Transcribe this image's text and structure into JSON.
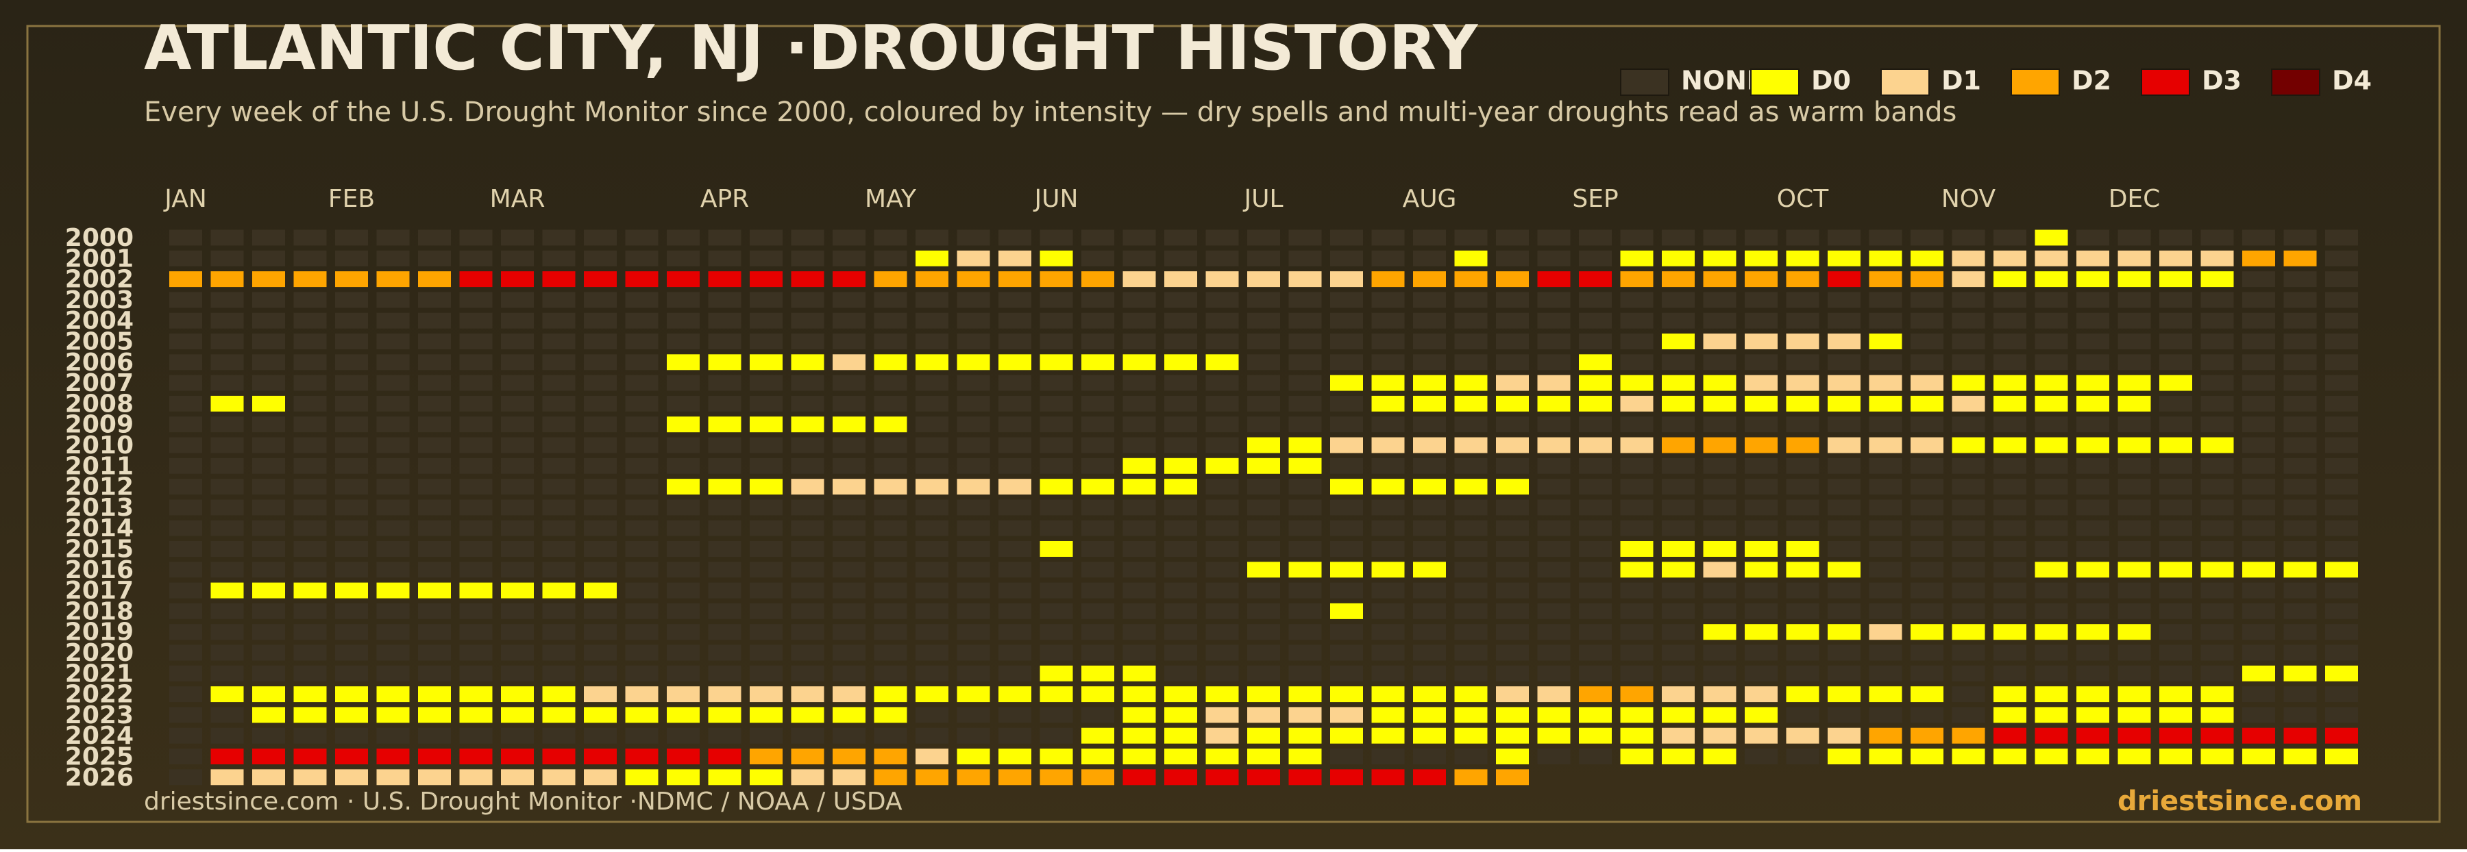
{
  "chart_data": {
    "type": "heatmap",
    "title": "ATLANTIC CITY, NJ ·DROUGHT HISTORY",
    "subtitle": "Every week of the U.S. Drought Monitor since 2000, coloured by intensity — dry spells and multi-year droughts read as warm bands",
    "footer": "driestsince.com  · U.S. Drought Monitor ·NDMC / NOAA / USDA",
    "brand": "driestsince.com",
    "levels": [
      {
        "name": "NONE",
        "color": "#3b3222"
      },
      {
        "name": "D0",
        "color": "#ffff00"
      },
      {
        "name": "D1",
        "color": "#fcd38f"
      },
      {
        "name": "D2",
        "color": "#ffa500"
      },
      {
        "name": "D3",
        "color": "#e60000"
      },
      {
        "name": "D4",
        "color": "#730000"
      }
    ],
    "xlim": [
      0,
      52
    ],
    "xticks": [
      {
        "value": 0,
        "label": "JAN"
      },
      {
        "value": 4,
        "label": "FEB"
      },
      {
        "value": 8,
        "label": "MAR"
      },
      {
        "value": 13,
        "label": "APR"
      },
      {
        "value": 17,
        "label": "MAY"
      },
      {
        "value": 21,
        "label": "JUN"
      },
      {
        "value": 26,
        "label": "JUL"
      },
      {
        "value": 30,
        "label": "AUG"
      },
      {
        "value": 34,
        "label": "SEP"
      },
      {
        "value": 39,
        "label": "OCT"
      },
      {
        "value": 43,
        "label": "NOV"
      },
      {
        "value": 47,
        "label": "DEC"
      }
    ],
    "rows": [
      "2000",
      "2001",
      "2002",
      "2003",
      "2004",
      "2005",
      "2006",
      "2007",
      "2008",
      "2009",
      "2010",
      "2011",
      "2012",
      "2013",
      "2014",
      "2015",
      "2016",
      "2017",
      "2018",
      "2019",
      "2020",
      "2021",
      "2022",
      "2023",
      "2024",
      "2025",
      "2026"
    ],
    "values": [
      [
        0,
        0,
        0,
        0,
        0,
        0,
        0,
        0,
        0,
        0,
        0,
        0,
        0,
        0,
        0,
        0,
        0,
        0,
        0,
        0,
        0,
        0,
        0,
        0,
        0,
        0,
        0,
        0,
        0,
        0,
        0,
        0,
        0,
        0,
        0,
        0,
        0,
        0,
        0,
        0,
        0,
        0,
        0,
        0,
        0,
        1,
        0,
        0,
        0,
        0,
        0,
        0,
        0
      ],
      [
        0,
        0,
        0,
        0,
        0,
        0,
        0,
        0,
        0,
        0,
        0,
        0,
        0,
        0,
        0,
        0,
        0,
        0,
        1,
        2,
        2,
        1,
        0,
        0,
        0,
        0,
        0,
        0,
        0,
        0,
        0,
        1,
        0,
        0,
        0,
        1,
        1,
        1,
        1,
        1,
        1,
        1,
        1,
        2,
        2,
        2,
        2,
        2,
        2,
        2,
        3,
        3,
        0
      ],
      [
        3,
        3,
        3,
        3,
        3,
        3,
        3,
        4,
        4,
        4,
        4,
        4,
        4,
        4,
        4,
        4,
        4,
        3,
        3,
        3,
        3,
        3,
        3,
        2,
        2,
        2,
        2,
        2,
        2,
        3,
        3,
        3,
        3,
        4,
        4,
        3,
        3,
        3,
        3,
        3,
        4,
        3,
        3,
        2,
        1,
        1,
        1,
        1,
        1,
        1,
        0,
        0,
        0
      ],
      [
        0,
        0,
        0,
        0,
        0,
        0,
        0,
        0,
        0,
        0,
        0,
        0,
        0,
        0,
        0,
        0,
        0,
        0,
        0,
        0,
        0,
        0,
        0,
        0,
        0,
        0,
        0,
        0,
        0,
        0,
        0,
        0,
        0,
        0,
        0,
        0,
        0,
        0,
        0,
        0,
        0,
        0,
        0,
        0,
        0,
        0,
        0,
        0,
        0,
        0,
        0,
        0,
        0
      ],
      [
        0,
        0,
        0,
        0,
        0,
        0,
        0,
        0,
        0,
        0,
        0,
        0,
        0,
        0,
        0,
        0,
        0,
        0,
        0,
        0,
        0,
        0,
        0,
        0,
        0,
        0,
        0,
        0,
        0,
        0,
        0,
        0,
        0,
        0,
        0,
        0,
        0,
        0,
        0,
        0,
        0,
        0,
        0,
        0,
        0,
        0,
        0,
        0,
        0,
        0,
        0,
        0,
        0
      ],
      [
        0,
        0,
        0,
        0,
        0,
        0,
        0,
        0,
        0,
        0,
        0,
        0,
        0,
        0,
        0,
        0,
        0,
        0,
        0,
        0,
        0,
        0,
        0,
        0,
        0,
        0,
        0,
        0,
        0,
        0,
        0,
        0,
        0,
        0,
        0,
        0,
        1,
        2,
        2,
        2,
        2,
        1,
        0,
        0,
        0,
        0,
        0,
        0,
        0,
        0,
        0,
        0,
        0
      ],
      [
        0,
        0,
        0,
        0,
        0,
        0,
        0,
        0,
        0,
        0,
        0,
        0,
        1,
        1,
        1,
        1,
        2,
        1,
        1,
        1,
        1,
        1,
        1,
        1,
        1,
        1,
        0,
        0,
        0,
        0,
        0,
        0,
        0,
        0,
        1,
        0,
        0,
        0,
        0,
        0,
        0,
        0,
        0,
        0,
        0,
        0,
        0,
        0,
        0,
        0,
        0,
        0,
        0
      ],
      [
        0,
        0,
        0,
        0,
        0,
        0,
        0,
        0,
        0,
        0,
        0,
        0,
        0,
        0,
        0,
        0,
        0,
        0,
        0,
        0,
        0,
        0,
        0,
        0,
        0,
        0,
        0,
        0,
        1,
        1,
        1,
        1,
        2,
        2,
        1,
        1,
        1,
        1,
        2,
        2,
        2,
        2,
        2,
        1,
        1,
        1,
        1,
        1,
        1,
        0,
        0,
        0,
        0
      ],
      [
        0,
        1,
        1,
        0,
        0,
        0,
        0,
        0,
        0,
        0,
        0,
        0,
        0,
        0,
        0,
        0,
        0,
        0,
        0,
        0,
        0,
        0,
        0,
        0,
        0,
        0,
        0,
        0,
        0,
        1,
        1,
        1,
        1,
        1,
        1,
        2,
        1,
        1,
        1,
        1,
        1,
        1,
        1,
        2,
        1,
        1,
        1,
        1,
        0,
        0,
        0,
        0,
        0
      ],
      [
        0,
        0,
        0,
        0,
        0,
        0,
        0,
        0,
        0,
        0,
        0,
        0,
        1,
        1,
        1,
        1,
        1,
        1,
        0,
        0,
        0,
        0,
        0,
        0,
        0,
        0,
        0,
        0,
        0,
        0,
        0,
        0,
        0,
        0,
        0,
        0,
        0,
        0,
        0,
        0,
        0,
        0,
        0,
        0,
        0,
        0,
        0,
        0,
        0,
        0,
        0,
        0,
        0
      ],
      [
        0,
        0,
        0,
        0,
        0,
        0,
        0,
        0,
        0,
        0,
        0,
        0,
        0,
        0,
        0,
        0,
        0,
        0,
        0,
        0,
        0,
        0,
        0,
        0,
        0,
        0,
        1,
        1,
        2,
        2,
        2,
        2,
        2,
        2,
        2,
        2,
        3,
        3,
        3,
        3,
        2,
        2,
        2,
        1,
        1,
        1,
        1,
        1,
        1,
        1,
        0,
        0,
        0
      ],
      [
        0,
        0,
        0,
        0,
        0,
        0,
        0,
        0,
        0,
        0,
        0,
        0,
        0,
        0,
        0,
        0,
        0,
        0,
        0,
        0,
        0,
        0,
        0,
        1,
        1,
        1,
        1,
        1,
        0,
        0,
        0,
        0,
        0,
        0,
        0,
        0,
        0,
        0,
        0,
        0,
        0,
        0,
        0,
        0,
        0,
        0,
        0,
        0,
        0,
        0,
        0,
        0,
        0
      ],
      [
        0,
        0,
        0,
        0,
        0,
        0,
        0,
        0,
        0,
        0,
        0,
        0,
        1,
        1,
        1,
        2,
        2,
        2,
        2,
        2,
        2,
        1,
        1,
        1,
        1,
        0,
        0,
        0,
        1,
        1,
        1,
        1,
        1,
        0,
        0,
        0,
        0,
        0,
        0,
        0,
        0,
        0,
        0,
        0,
        0,
        0,
        0,
        0,
        0,
        0,
        0,
        0,
        0
      ],
      [
        0,
        0,
        0,
        0,
        0,
        0,
        0,
        0,
        0,
        0,
        0,
        0,
        0,
        0,
        0,
        0,
        0,
        0,
        0,
        0,
        0,
        0,
        0,
        0,
        0,
        0,
        0,
        0,
        0,
        0,
        0,
        0,
        0,
        0,
        0,
        0,
        0,
        0,
        0,
        0,
        0,
        0,
        0,
        0,
        0,
        0,
        0,
        0,
        0,
        0,
        0,
        0,
        0
      ],
      [
        0,
        0,
        0,
        0,
        0,
        0,
        0,
        0,
        0,
        0,
        0,
        0,
        0,
        0,
        0,
        0,
        0,
        0,
        0,
        0,
        0,
        0,
        0,
        0,
        0,
        0,
        0,
        0,
        0,
        0,
        0,
        0,
        0,
        0,
        0,
        0,
        0,
        0,
        0,
        0,
        0,
        0,
        0,
        0,
        0,
        0,
        0,
        0,
        0,
        0,
        0,
        0,
        0
      ],
      [
        0,
        0,
        0,
        0,
        0,
        0,
        0,
        0,
        0,
        0,
        0,
        0,
        0,
        0,
        0,
        0,
        0,
        0,
        0,
        0,
        0,
        1,
        0,
        0,
        0,
        0,
        0,
        0,
        0,
        0,
        0,
        0,
        0,
        0,
        0,
        1,
        1,
        1,
        1,
        1,
        0,
        0,
        0,
        0,
        0,
        0,
        0,
        0,
        0,
        0,
        0,
        0,
        0
      ],
      [
        0,
        0,
        0,
        0,
        0,
        0,
        0,
        0,
        0,
        0,
        0,
        0,
        0,
        0,
        0,
        0,
        0,
        0,
        0,
        0,
        0,
        0,
        0,
        0,
        0,
        0,
        1,
        1,
        1,
        1,
        1,
        0,
        0,
        0,
        0,
        1,
        1,
        2,
        1,
        1,
        1,
        0,
        0,
        0,
        0,
        1,
        1,
        1,
        1,
        1,
        1,
        1,
        1
      ],
      [
        0,
        1,
        1,
        1,
        1,
        1,
        1,
        1,
        1,
        1,
        1,
        0,
        0,
        0,
        0,
        0,
        0,
        0,
        0,
        0,
        0,
        0,
        0,
        0,
        0,
        0,
        0,
        0,
        0,
        0,
        0,
        0,
        0,
        0,
        0,
        0,
        0,
        0,
        0,
        0,
        0,
        0,
        0,
        0,
        0,
        0,
        0,
        0,
        0,
        0,
        0,
        0,
        0
      ],
      [
        0,
        0,
        0,
        0,
        0,
        0,
        0,
        0,
        0,
        0,
        0,
        0,
        0,
        0,
        0,
        0,
        0,
        0,
        0,
        0,
        0,
        0,
        0,
        0,
        0,
        0,
        0,
        0,
        1,
        0,
        0,
        0,
        0,
        0,
        0,
        0,
        0,
        0,
        0,
        0,
        0,
        0,
        0,
        0,
        0,
        0,
        0,
        0,
        0,
        0,
        0,
        0,
        0
      ],
      [
        0,
        0,
        0,
        0,
        0,
        0,
        0,
        0,
        0,
        0,
        0,
        0,
        0,
        0,
        0,
        0,
        0,
        0,
        0,
        0,
        0,
        0,
        0,
        0,
        0,
        0,
        0,
        0,
        0,
        0,
        0,
        0,
        0,
        0,
        0,
        0,
        0,
        1,
        1,
        1,
        1,
        2,
        1,
        1,
        1,
        1,
        1,
        1,
        0,
        0,
        0,
        0,
        0
      ],
      [
        0,
        0,
        0,
        0,
        0,
        0,
        0,
        0,
        0,
        0,
        0,
        0,
        0,
        0,
        0,
        0,
        0,
        0,
        0,
        0,
        0,
        0,
        0,
        0,
        0,
        0,
        0,
        0,
        0,
        0,
        0,
        0,
        0,
        0,
        0,
        0,
        0,
        0,
        0,
        0,
        0,
        0,
        0,
        0,
        0,
        0,
        0,
        0,
        0,
        0,
        0,
        0,
        0
      ],
      [
        0,
        0,
        0,
        0,
        0,
        0,
        0,
        0,
        0,
        0,
        0,
        0,
        0,
        0,
        0,
        0,
        0,
        0,
        0,
        0,
        0,
        1,
        1,
        1,
        0,
        0,
        0,
        0,
        0,
        0,
        0,
        0,
        0,
        0,
        0,
        0,
        0,
        0,
        0,
        0,
        0,
        0,
        0,
        0,
        0,
        0,
        0,
        0,
        0,
        0,
        1,
        1,
        1
      ],
      [
        0,
        1,
        1,
        1,
        1,
        1,
        1,
        1,
        1,
        1,
        2,
        2,
        2,
        2,
        2,
        2,
        2,
        1,
        1,
        1,
        1,
        1,
        1,
        1,
        1,
        1,
        1,
        1,
        1,
        1,
        1,
        1,
        2,
        2,
        3,
        3,
        2,
        2,
        2,
        1,
        1,
        1,
        1,
        0,
        1,
        1,
        1,
        1,
        1,
        1,
        0,
        0,
        0
      ],
      [
        0,
        0,
        1,
        1,
        1,
        1,
        1,
        1,
        1,
        1,
        1,
        1,
        1,
        1,
        1,
        1,
        1,
        1,
        0,
        0,
        0,
        0,
        0,
        1,
        1,
        2,
        2,
        2,
        2,
        1,
        1,
        1,
        1,
        1,
        1,
        1,
        1,
        1,
        1,
        0,
        0,
        0,
        0,
        0,
        1,
        1,
        1,
        1,
        1,
        1,
        0,
        0,
        0
      ],
      [
        0,
        0,
        0,
        0,
        0,
        0,
        0,
        0,
        0,
        0,
        0,
        0,
        0,
        0,
        0,
        0,
        0,
        0,
        0,
        0,
        0,
        0,
        1,
        1,
        1,
        2,
        1,
        1,
        1,
        1,
        1,
        1,
        1,
        1,
        1,
        1,
        2,
        2,
        2,
        2,
        2,
        3,
        3,
        3,
        4,
        4,
        4,
        4,
        4,
        4,
        4,
        4,
        4
      ],
      [
        0,
        4,
        4,
        4,
        4,
        4,
        4,
        4,
        4,
        4,
        4,
        4,
        4,
        4,
        3,
        3,
        3,
        3,
        2,
        1,
        1,
        1,
        1,
        1,
        1,
        1,
        1,
        1,
        0,
        0,
        0,
        0,
        1,
        0,
        0,
        1,
        1,
        1,
        0,
        0,
        1,
        1,
        1,
        1,
        1,
        1,
        1,
        1,
        1,
        1,
        1,
        1,
        1
      ],
      [
        0,
        2,
        2,
        2,
        2,
        2,
        2,
        2,
        2,
        2,
        2,
        1,
        1,
        1,
        1,
        2,
        2,
        3,
        3,
        3,
        3,
        3,
        3,
        4,
        4,
        4,
        4,
        4,
        4,
        4,
        4,
        3,
        3,
        null,
        null,
        null,
        null,
        null,
        null,
        null,
        null,
        null,
        null,
        null,
        null,
        null,
        null,
        null,
        null,
        null,
        null,
        null,
        null
      ]
    ]
  }
}
